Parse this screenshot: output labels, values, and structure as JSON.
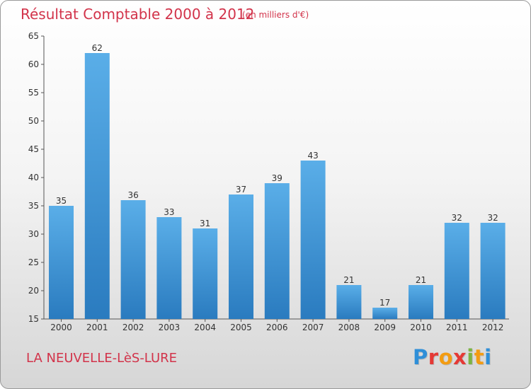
{
  "header": {
    "title": "Résultat Comptable 2000 à 2012",
    "subtitle": "(en milliers d'€)"
  },
  "footer": {
    "commune": "LA NEUVELLE-LèS-LURE",
    "logo": "Proxiti"
  },
  "colors": {
    "title": "#d2334a",
    "bar_top": "#5aaee8",
    "bar_bottom": "#2a7bbf",
    "logo_letters": [
      "#2f8fd8",
      "#e53935",
      "#f39c12",
      "#e53935",
      "#7cb342",
      "#f39c12",
      "#2f8fd8"
    ]
  },
  "chart_data": {
    "type": "bar",
    "title": "Résultat Comptable 2000 à 2012",
    "subtitle": "(en milliers d'€)",
    "categories": [
      "2000",
      "2001",
      "2002",
      "2003",
      "2004",
      "2005",
      "2006",
      "2007",
      "2008",
      "2009",
      "2010",
      "2011",
      "2012"
    ],
    "values": [
      35,
      62,
      36,
      33,
      31,
      37,
      39,
      43,
      21,
      17,
      21,
      32,
      32
    ],
    "ylim": [
      15,
      65
    ],
    "yticks": [
      15,
      20,
      25,
      30,
      35,
      40,
      45,
      50,
      55,
      60,
      65
    ],
    "grid": false,
    "data_labels": true
  }
}
